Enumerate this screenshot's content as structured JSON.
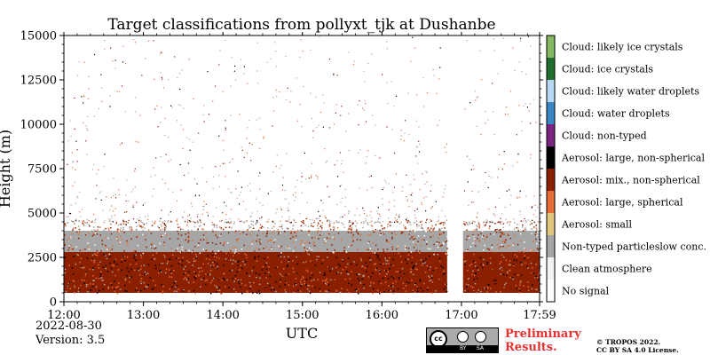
{
  "chart_data": {
    "type": "heatmap",
    "title": "Target classifications from pollyxt_tjk at Dushanbe",
    "xlabel": "UTC",
    "ylabel": "Height (m)",
    "x_range_hours": [
      12.0,
      17.983
    ],
    "ylim": [
      0,
      15000
    ],
    "x_ticks": [
      {
        "value": 12.0,
        "label": "12:00"
      },
      {
        "value": 13.0,
        "label": "13:00"
      },
      {
        "value": 14.0,
        "label": "14:00"
      },
      {
        "value": 15.0,
        "label": "15:00"
      },
      {
        "value": 16.0,
        "label": "16:00"
      },
      {
        "value": 17.0,
        "label": "17:00"
      },
      {
        "value": 17.983,
        "label": "17:59"
      }
    ],
    "y_ticks": [
      0,
      2500,
      5000,
      7500,
      10000,
      12500,
      15000
    ],
    "y_tick_labels": [
      "0",
      "2500",
      "5000",
      "7500",
      "10000",
      "12500",
      "15000"
    ],
    "legend": [
      {
        "label": "No signal",
        "color": "#ffffff"
      },
      {
        "label": "Clean atmosphere",
        "color": "#f2f2f2"
      },
      {
        "label": "Non-typed particleslow conc.",
        "color": "#a6a6a6"
      },
      {
        "label": "Aerosol: small",
        "color": "#e0c77f"
      },
      {
        "label": "Aerosol: large, spherical",
        "color": "#e46d36"
      },
      {
        "label": "Aerosol: mix., non-spherical",
        "color": "#8b2000"
      },
      {
        "label": "Aerosol: large, non-spherical",
        "color": "#000000"
      },
      {
        "label": "Cloud: non-typed",
        "color": "#782480"
      },
      {
        "label": "Cloud: water droplets",
        "color": "#3b87c5"
      },
      {
        "label": "Cloud: likely water droplets",
        "color": "#b7d7f2"
      },
      {
        "label": "Cloud: ice crystals",
        "color": "#1f6e30"
      },
      {
        "label": "Cloud: likely ice crystals",
        "color": "#84b865"
      }
    ],
    "layers": [
      {
        "class": "Aerosol: mix., non-spherical",
        "bottom": 500,
        "top": 2800
      },
      {
        "class": "Non-typed particleslow conc.",
        "bottom": 2800,
        "top": 4000
      }
    ],
    "data_gap_hours": [
      16.82,
      17.02
    ]
  },
  "footer": {
    "date": "2022-08-30",
    "version": "Version: 3.5",
    "preliminary_line1": "Preliminary",
    "preliminary_line2": "Results.",
    "copyright_line1": "© TROPOS 2022.",
    "copyright_line2": "CC BY SA 4.0 License.",
    "license_badge": {
      "cc": "cc",
      "by": "BY",
      "sa": "SA"
    }
  }
}
